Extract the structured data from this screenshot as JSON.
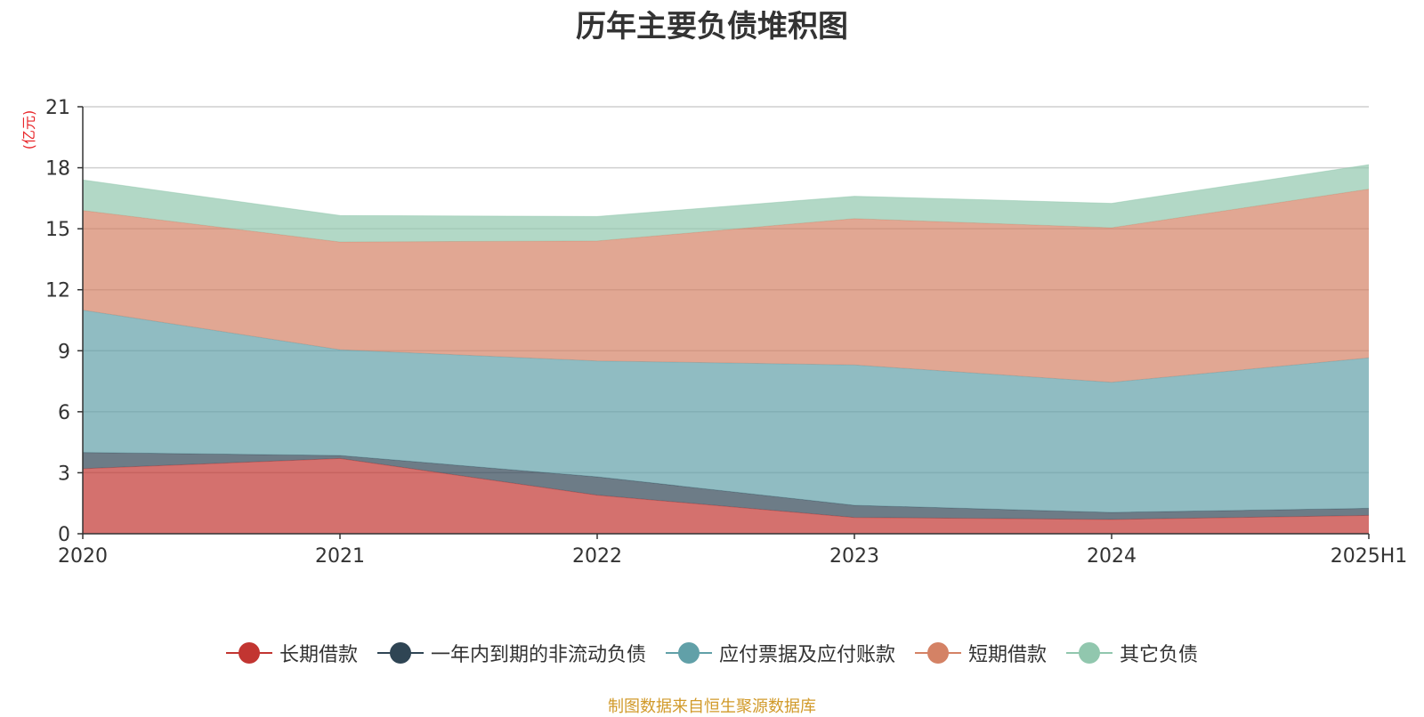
{
  "chart_data": {
    "type": "area",
    "stacked": true,
    "title": "历年主要负债堆积图",
    "unit_label": "(亿元)",
    "categories": [
      "2020",
      "2021",
      "2022",
      "2023",
      "2024",
      "2025H1"
    ],
    "ylim": [
      0,
      21
    ],
    "yticks": [
      0,
      3,
      6,
      9,
      12,
      15,
      18,
      21
    ],
    "grid": true,
    "legend_position": "bottom",
    "series": [
      {
        "name": "长期借款",
        "color": "#c23531",
        "values": [
          3.2,
          3.7,
          1.9,
          0.8,
          0.7,
          0.9
        ]
      },
      {
        "name": "一年内到期的非流动负债",
        "color": "#2f4554",
        "values": [
          0.8,
          0.15,
          0.9,
          0.6,
          0.35,
          0.35
        ]
      },
      {
        "name": "应付票据及应付账款",
        "color": "#61a0a8",
        "values": [
          7.0,
          5.2,
          5.7,
          6.9,
          6.4,
          7.4
        ]
      },
      {
        "name": "短期借款",
        "color": "#d48265",
        "values": [
          4.9,
          5.3,
          5.9,
          7.2,
          7.6,
          8.3
        ]
      },
      {
        "name": "其它负债",
        "color": "#91c7ae",
        "values": [
          1.5,
          1.3,
          1.2,
          1.1,
          1.2,
          1.2
        ]
      }
    ]
  },
  "footer": {
    "source": "制图数据来自恒生聚源数据库"
  }
}
